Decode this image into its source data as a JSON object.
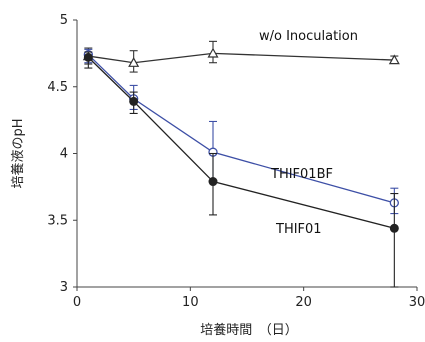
{
  "chart_data": {
    "type": "line",
    "title": "",
    "xlabel": "培養時間　（日）",
    "ylabel": "培養液のpH",
    "xlim": [
      0,
      30
    ],
    "ylim": [
      3,
      5
    ],
    "xticks": [
      0,
      10,
      20,
      30
    ],
    "yticks": [
      3,
      3.5,
      4,
      4.5,
      5
    ],
    "xtick_labels": [
      "0",
      "10",
      "20",
      "30"
    ],
    "ytick_labels": [
      "3",
      "3.5",
      "4",
      "4.5",
      "5"
    ],
    "grid": false,
    "legend": "none (series labeled inline)",
    "series": [
      {
        "name": "w/o Inoculation",
        "color": "#333333",
        "marker": "open-triangle",
        "x": [
          1,
          5,
          12,
          28
        ],
        "y": [
          4.73,
          4.68,
          4.75,
          4.7
        ],
        "err_low": [
          0.06,
          0.07,
          0.07,
          0.02
        ],
        "err_high": [
          0.06,
          0.09,
          0.09,
          0.03
        ]
      },
      {
        "name": "THIF01BF",
        "color": "#3d4fa6",
        "marker": "open-circle",
        "x": [
          1,
          5,
          12,
          28
        ],
        "y": [
          4.74,
          4.41,
          4.01,
          3.63
        ],
        "err_low": [
          0.06,
          0.08,
          0.22,
          0.08
        ],
        "err_high": [
          0.04,
          0.1,
          0.23,
          0.11
        ]
      },
      {
        "name": "THIF01",
        "color": "#222222",
        "marker": "filled-circle",
        "x": [
          1,
          5,
          12,
          28
        ],
        "y": [
          4.72,
          4.39,
          3.79,
          3.44
        ],
        "err_low": [
          0.08,
          0.09,
          0.25,
          0.44
        ],
        "err_high": [
          0.04,
          0.07,
          0.21,
          0.26
        ]
      }
    ]
  }
}
